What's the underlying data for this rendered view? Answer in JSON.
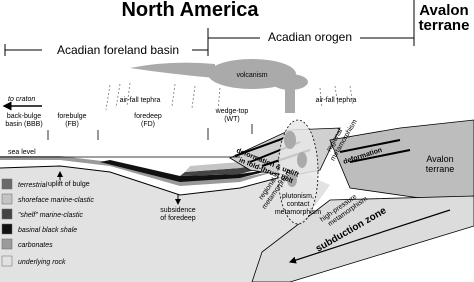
{
  "header": {
    "title": "North America",
    "terrane": [
      "Avalon",
      "terrane"
    ]
  },
  "regions": {
    "foreland": "Acadian foreland basin",
    "orogen": "Acadian orogen"
  },
  "labels": {
    "craton": "to craton",
    "back_bulge": [
      "back-bulge",
      "basin (BBB)"
    ],
    "forebulge": [
      "forebulge",
      "(FB)"
    ],
    "foredeep": [
      "foredeep",
      "(FD)"
    ],
    "wedge_top": [
      "wedge-top",
      "(WT)"
    ],
    "tephra_left": "air-fall tephra",
    "tephra_right": "air-fall tephra",
    "volcanism": "volcanism",
    "sea_level": "sea level",
    "uplift": "uplift of bulge",
    "subsidence": [
      "subsidence",
      "of foredeep"
    ],
    "deformation_uplift": [
      "deformation & uplift",
      "in fold-thrust belt"
    ],
    "plutonism": [
      "plutonism,",
      "contact",
      "metamorphism"
    ],
    "regional_left": [
      "regional",
      "metamorphism"
    ],
    "regional_right": [
      "regional",
      "metamorphism"
    ],
    "deformation": "deformation",
    "high_pressure": [
      "high-pressure",
      "metamorphism"
    ],
    "subduction": "subduction zone",
    "avalon": [
      "Avalon",
      "terrane"
    ]
  },
  "legend": [
    {
      "label": "terrestrial",
      "color": "#6a6a6a"
    },
    {
      "label": "shoreface marine-clastic",
      "color": "#c4c4c4"
    },
    {
      "label": "\"shelf\" marine-clastic",
      "color": "#444444"
    },
    {
      "label": "basinal black shale",
      "color": "#111111"
    },
    {
      "label": "carbonates",
      "color": "#9a9a9a"
    },
    {
      "label": "underlying rock",
      "color": "#e2e2e2"
    }
  ]
}
